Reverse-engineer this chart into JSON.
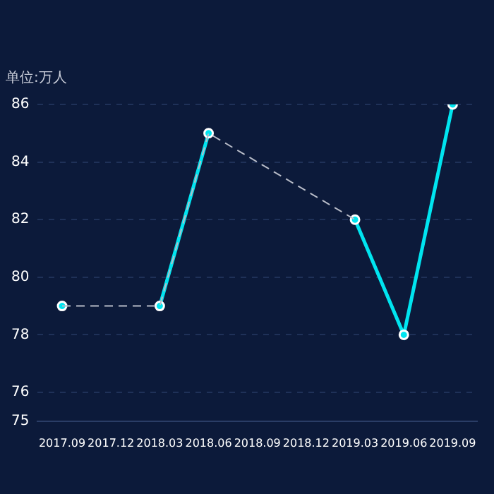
{
  "chart_data": {
    "type": "line",
    "ylabel": "单位:万人",
    "categories": [
      "2017.09",
      "2017.12",
      "2018.03",
      "2018.06",
      "2018.09",
      "2018.12",
      "2019.03",
      "2019.06",
      "2019.09"
    ],
    "series": [
      {
        "color": "#b8bcc8",
        "line_style": "dashed",
        "marker": "none",
        "values": [
          79,
          null,
          79,
          85,
          null,
          null,
          82,
          null,
          null
        ]
      },
      {
        "color": "#00e5f0",
        "values": [
          79,
          null,
          79,
          85,
          null,
          null,
          82,
          78,
          86
        ]
      }
    ],
    "ylim": [
      75,
      86
    ],
    "yticks": [
      75,
      76,
      78,
      80,
      82,
      84,
      86
    ],
    "grid": "y",
    "marker": "circle",
    "line_style": "solid",
    "legend": false
  }
}
